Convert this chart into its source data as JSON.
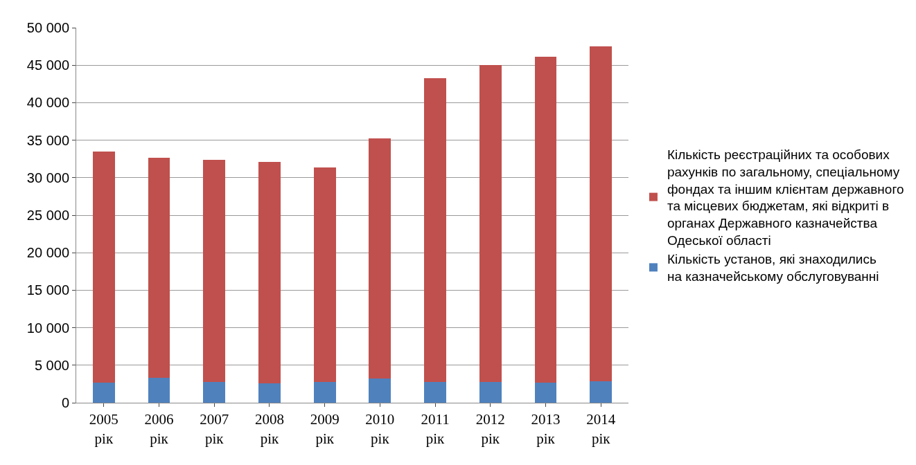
{
  "chart_data": {
    "type": "bar",
    "stacked": true,
    "categories": [
      "2005 рік",
      "2006 рік",
      "2007 рік",
      "2008 рік",
      "2009 рік",
      "2010 рік",
      "2011 рік",
      "2012 рік",
      "2013 рік",
      "2014 рік"
    ],
    "series": [
      {
        "name": "Кількість установ, які знаходились на казначейському обслуговуванні",
        "color": "#4f81bd",
        "values": [
          2700,
          3300,
          2800,
          2600,
          2800,
          3200,
          2800,
          2800,
          2700,
          2900
        ]
      },
      {
        "name": "Кількість реєстраційних та особових рахунків по загальному, спеціальному фондах та іншим клієнтам державного та місцевих бюджетам, які відкриті в органах Державного казначейства Одеської області",
        "color": "#c0504d",
        "values": [
          30800,
          29400,
          29600,
          29500,
          28600,
          32000,
          40500,
          42200,
          43400,
          44600
        ]
      }
    ],
    "ylim": [
      0,
      50000
    ],
    "yticks": [
      {
        "value": 0,
        "label": "0"
      },
      {
        "value": 5000,
        "label": "5 000"
      },
      {
        "value": 10000,
        "label": "10 000"
      },
      {
        "value": 15000,
        "label": "15 000"
      },
      {
        "value": 20000,
        "label": "20 000"
      },
      {
        "value": 25000,
        "label": "25 000"
      },
      {
        "value": 30000,
        "label": "30 000"
      },
      {
        "value": 35000,
        "label": "35 000"
      },
      {
        "value": 40000,
        "label": "40 000"
      },
      {
        "value": 45000,
        "label": "45 000"
      },
      {
        "value": 50000,
        "label": "50 000"
      }
    ],
    "grid": "y",
    "legend": "right"
  }
}
